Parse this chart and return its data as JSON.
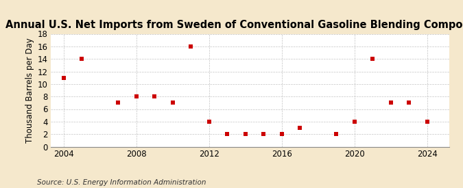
{
  "title": "Annual U.S. Net Imports from Sweden of Conventional Gasoline Blending Components",
  "ylabel": "Thousand Barrels per Day",
  "source": "Source: U.S. Energy Information Administration",
  "background_color": "#f5e8cc",
  "plot_background_color": "#ffffff",
  "marker_color": "#cc0000",
  "years": [
    2004,
    2005,
    2007,
    2008,
    2009,
    2010,
    2011,
    2012,
    2013,
    2014,
    2015,
    2016,
    2017,
    2019,
    2020,
    2021,
    2022,
    2023,
    2024
  ],
  "values": [
    11,
    14,
    7,
    8,
    8,
    7,
    16,
    4,
    2,
    2,
    2,
    2,
    3,
    2,
    4,
    14,
    7,
    7,
    4
  ],
  "xlim": [
    2003.3,
    2025.2
  ],
  "ylim": [
    0,
    18
  ],
  "yticks": [
    0,
    2,
    4,
    6,
    8,
    10,
    12,
    14,
    16,
    18
  ],
  "xticks": [
    2004,
    2008,
    2012,
    2016,
    2020,
    2024
  ],
  "grid_color": "#aaaaaa",
  "title_fontsize": 10.5,
  "label_fontsize": 8.5,
  "tick_fontsize": 8.5,
  "source_fontsize": 7.5
}
